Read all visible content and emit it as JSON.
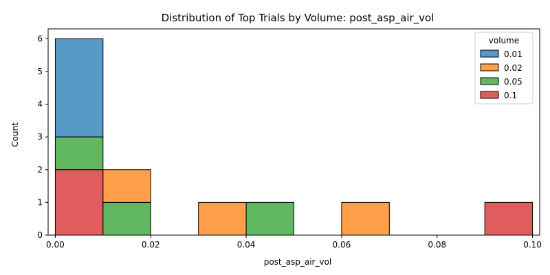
{
  "chart_data": {
    "type": "bar",
    "subtype": "stacked-histogram",
    "title": "Distribution of Top Trials by Volume: post_asp_air_vol",
    "xlabel": "post_asp_air_vol",
    "ylabel": "Count",
    "xlim": [
      -0.0015,
      0.1015
    ],
    "ylim": [
      0,
      6.3
    ],
    "xticks": [
      0.0,
      0.02,
      0.04,
      0.06,
      0.08,
      0.1
    ],
    "xtick_labels": [
      "0.00",
      "0.02",
      "0.04",
      "0.06",
      "0.08",
      "0.10"
    ],
    "yticks": [
      0,
      1,
      2,
      3,
      4,
      5,
      6
    ],
    "ytick_labels": [
      "0",
      "1",
      "2",
      "3",
      "4",
      "5",
      "6"
    ],
    "bin_edges": [
      0.0,
      0.01,
      0.02,
      0.03,
      0.04,
      0.05,
      0.06,
      0.07,
      0.08,
      0.09,
      0.1
    ],
    "legend": {
      "title": "volume",
      "position": "top-right"
    },
    "series": [
      {
        "name": "0.1",
        "color": "#d62728",
        "values": [
          2,
          0,
          0,
          0,
          0,
          0,
          0,
          0,
          0,
          1
        ]
      },
      {
        "name": "0.05",
        "color": "#2ca02c",
        "values": [
          1,
          1,
          0,
          0,
          1,
          0,
          0,
          0,
          0,
          0
        ]
      },
      {
        "name": "0.02",
        "color": "#ff7f0e",
        "values": [
          0,
          1,
          0,
          1,
          0,
          0,
          1,
          0,
          0,
          0
        ]
      },
      {
        "name": "0.01",
        "color": "#1f77b4",
        "values": [
          3,
          0,
          0,
          0,
          0,
          0,
          0,
          0,
          0,
          0
        ]
      }
    ],
    "legend_order": [
      "0.01",
      "0.02",
      "0.05",
      "0.1"
    ]
  }
}
